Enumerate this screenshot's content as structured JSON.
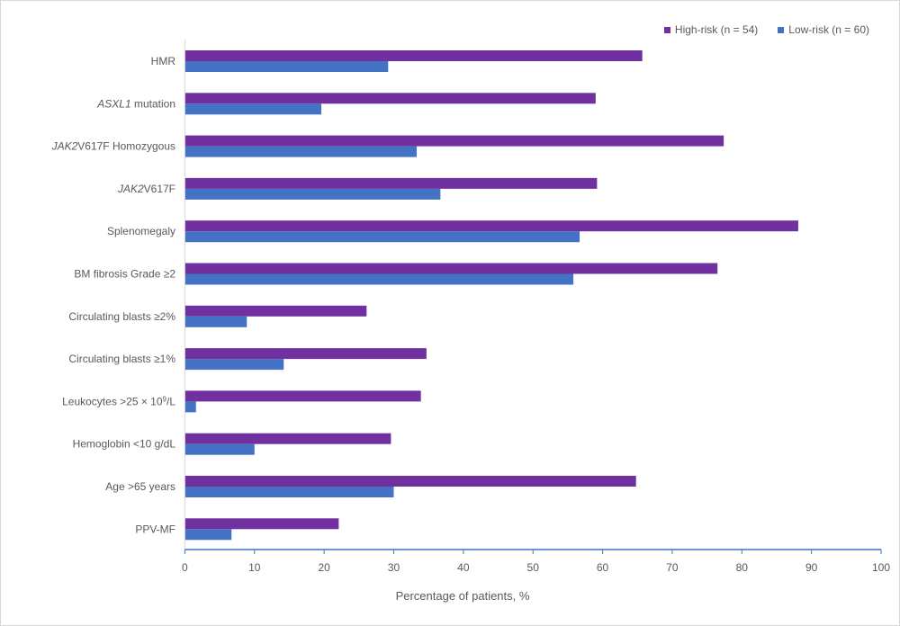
{
  "chart_data": {
    "type": "bar",
    "orientation": "horizontal",
    "xlabel": "Percentage of patients, %",
    "xlim": [
      0,
      100
    ],
    "xticks": [
      "0",
      "10",
      "20",
      "30",
      "40",
      "50",
      "60",
      "70",
      "80",
      "90",
      "100"
    ],
    "grid": false,
    "legend_position": "top-right",
    "categories": [
      [
        {
          "t": "HMR"
        }
      ],
      [
        {
          "t": "ASXL1",
          "i": true
        },
        {
          "t": " mutation"
        }
      ],
      [
        {
          "t": "JAK2",
          "i": true
        },
        {
          "t": "V617F Homozygous"
        }
      ],
      [
        {
          "t": "JAK2",
          "i": true
        },
        {
          "t": "V617F"
        }
      ],
      [
        {
          "t": "Splenomegaly"
        }
      ],
      [
        {
          "t": "BM fibrosis Grade ≥2"
        }
      ],
      [
        {
          "t": "Circulating blasts ≥2%"
        }
      ],
      [
        {
          "t": "Circulating blasts ≥1%"
        }
      ],
      [
        {
          "t": "Leukocytes >25 × 10"
        },
        {
          "t": "9",
          "sup": true
        },
        {
          "t": "/L"
        }
      ],
      [
        {
          "t": "Hemoglobin <10 g/dL"
        }
      ],
      [
        {
          "t": "Age >65 years"
        }
      ],
      [
        {
          "t": "PPV-MF"
        }
      ]
    ],
    "series": [
      {
        "name": "High-risk (n = 54)",
        "color": "#7030A0",
        "values": [
          65.7,
          59.0,
          77.4,
          59.2,
          88.1,
          76.5,
          26.1,
          34.7,
          33.9,
          29.6,
          64.8,
          22.1
        ]
      },
      {
        "name": "Low-risk (n = 60)",
        "color": "#4472C4",
        "values": [
          29.2,
          19.6,
          33.3,
          36.7,
          56.7,
          55.8,
          8.9,
          14.2,
          1.6,
          10.0,
          30.0,
          6.7
        ]
      }
    ]
  }
}
